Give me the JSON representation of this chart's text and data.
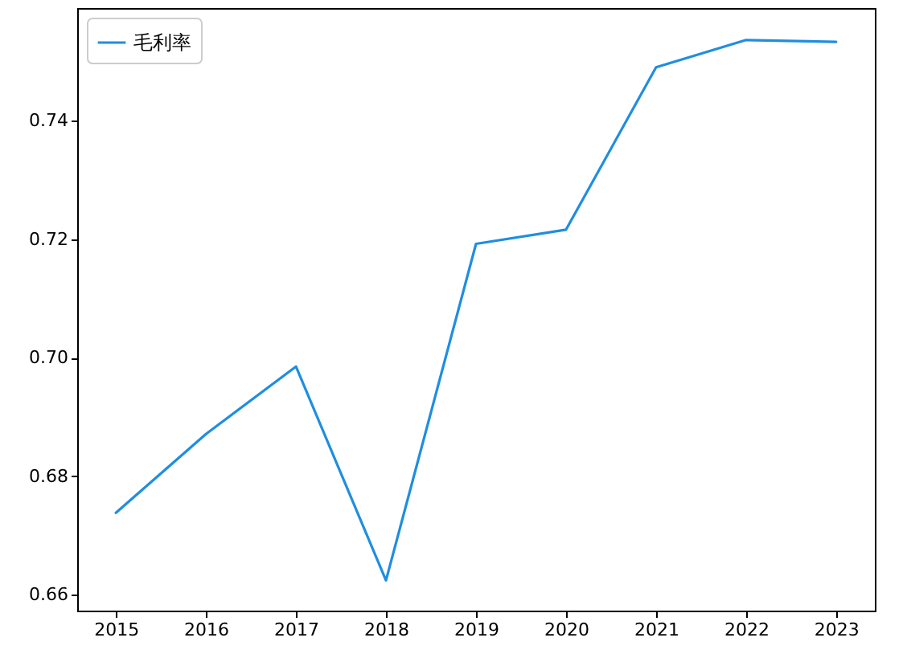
{
  "chart_data": {
    "type": "line",
    "categories": [
      "2015",
      "2016",
      "2017",
      "2018",
      "2019",
      "2020",
      "2021",
      "2022",
      "2023"
    ],
    "series": [
      {
        "name": "毛利率",
        "color": "#1f8ee0",
        "values": [
          0.6738,
          0.6871,
          0.6985,
          0.6624,
          0.7192,
          0.7216,
          0.749,
          0.7536,
          0.7533
        ]
      }
    ],
    "ylim": [
      0.6573,
      0.759
    ],
    "yticks": [
      0.66,
      0.68,
      {
        "value": 0.7,
        "label": "0.70"
      },
      0.72,
      0.74
    ],
    "grid": false,
    "legend": "top left"
  }
}
